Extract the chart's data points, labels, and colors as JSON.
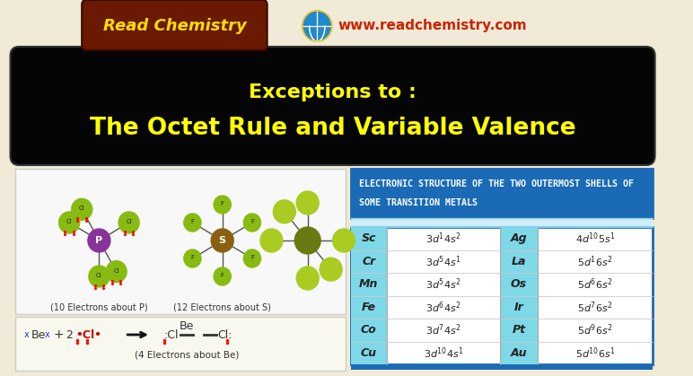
{
  "bg_color": "#f0ead6",
  "title_line1": "Exceptions to :",
  "title_line2": "The Octet Rule and Variable Valence",
  "title_color": "#ffff00",
  "title_bg": "#050505",
  "header_text_line1": "ELECTRONIC STRUCTURE OF THE TWO OUTERMOST SHELLS OF",
  "header_text_line2": "SOME TRANSITION METALS",
  "header_bg": "#1a6ab5",
  "header_text_color": "#ffffff",
  "table_cyan": "#7fd8e8",
  "table_white": "#ffffff",
  "table_divider_bg": "#c8e8f0",
  "table_border": "#1a6ab5",
  "table_bottom_bar": "#1a6ab5",
  "col1_elements": [
    "Sc",
    "Cr",
    "Mn",
    "Fe",
    "Co",
    "Cu"
  ],
  "col2_elements": [
    "Ag",
    "La",
    "Os",
    "Ir",
    "Pt",
    "Au"
  ],
  "website": "www.readchemistry.com",
  "brand": "Read Chemistry",
  "website_color": "#cc2200",
  "brand_color": "#ffdd00",
  "logo_bg": "#6a1a00",
  "globe_color": "#2288cc",
  "left_box_bg": "#f8f8f8",
  "left_box_border": "#cccccc",
  "bottom_box_bg": "#f0ead6",
  "mol_center_p": "#883399",
  "mol_center_s": "#8b6010",
  "mol_green": "#88bb11",
  "mol_center_right": "#6b7a10",
  "mol_green_right": "#aacc22",
  "p_caption": "(10 Electrons about P)",
  "s_caption": "(12 Electrons about S)",
  "be_caption": "(4 Electrons about Be)"
}
